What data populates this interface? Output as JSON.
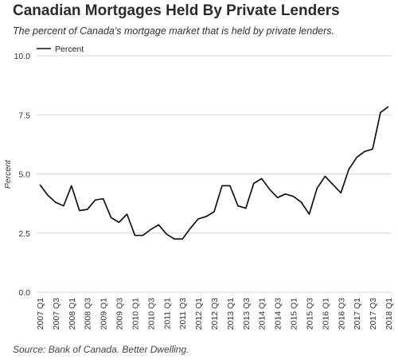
{
  "chart_data": {
    "type": "line",
    "title": "Canadian Mortgages Held By Private Lenders",
    "subtitle": "The percent of Canada's mortgage market that is held by private lenders.",
    "ylabel": "Percent",
    "xlabel": "",
    "ylim": [
      0,
      10
    ],
    "yticks": [
      "0.0",
      "2.5",
      "5.0",
      "7.5",
      "10.0"
    ],
    "ytick_values": [
      0,
      2.5,
      5,
      7.5,
      10
    ],
    "grid": true,
    "legend_position": "top-left",
    "line_color": "#111111",
    "categories": [
      "2007 Q1",
      "2007 Q2",
      "2007 Q3",
      "2007 Q4",
      "2008 Q1",
      "2008 Q2",
      "2008 Q3",
      "2008 Q4",
      "2009 Q1",
      "2009 Q2",
      "2009 Q3",
      "2009 Q4",
      "2010 Q1",
      "2010 Q2",
      "2010 Q3",
      "2010 Q4",
      "2011 Q1",
      "2011 Q2",
      "2011 Q3",
      "2011 Q4",
      "2012 Q1",
      "2012 Q2",
      "2012 Q3",
      "2012 Q4",
      "2013 Q1",
      "2013 Q2",
      "2013 Q3",
      "2013 Q4",
      "2014 Q1",
      "2014 Q2",
      "2014 Q3",
      "2014 Q4",
      "2015 Q1",
      "2015 Q2",
      "2015 Q3",
      "2015 Q4",
      "2016 Q1",
      "2016 Q2",
      "2016 Q3",
      "2016 Q4",
      "2017 Q1",
      "2017 Q2",
      "2017 Q3",
      "2017 Q4",
      "2018 Q1"
    ],
    "x_tick_labels": [
      "2007 Q1",
      "2007 Q3",
      "2008 Q1",
      "2008 Q3",
      "2009 Q1",
      "2009 Q3",
      "2010 Q1",
      "2010 Q3",
      "2011 Q1",
      "2011 Q3",
      "2012 Q1",
      "2012 Q3",
      "2013 Q1",
      "2013 Q3",
      "2014 Q1",
      "2014 Q3",
      "2015 Q1",
      "2015 Q3",
      "2016 Q1",
      "2016 Q3",
      "2017 Q1",
      "2017 Q3",
      "2018 Q1"
    ],
    "series": [
      {
        "name": "Percent",
        "values": [
          4.55,
          4.1,
          3.8,
          3.65,
          4.5,
          3.45,
          3.5,
          3.9,
          3.95,
          3.15,
          2.95,
          3.3,
          2.4,
          2.4,
          2.65,
          2.85,
          2.45,
          2.25,
          2.25,
          2.7,
          3.1,
          3.2,
          3.4,
          4.5,
          4.5,
          3.65,
          3.55,
          4.6,
          4.8,
          4.35,
          4.0,
          4.15,
          4.05,
          3.8,
          3.3,
          4.4,
          4.9,
          4.55,
          4.2,
          5.2,
          5.7,
          5.95,
          6.05,
          7.6,
          7.85
        ]
      }
    ]
  },
  "source_text": "Source: Bank of Canada. Better Dwelling."
}
